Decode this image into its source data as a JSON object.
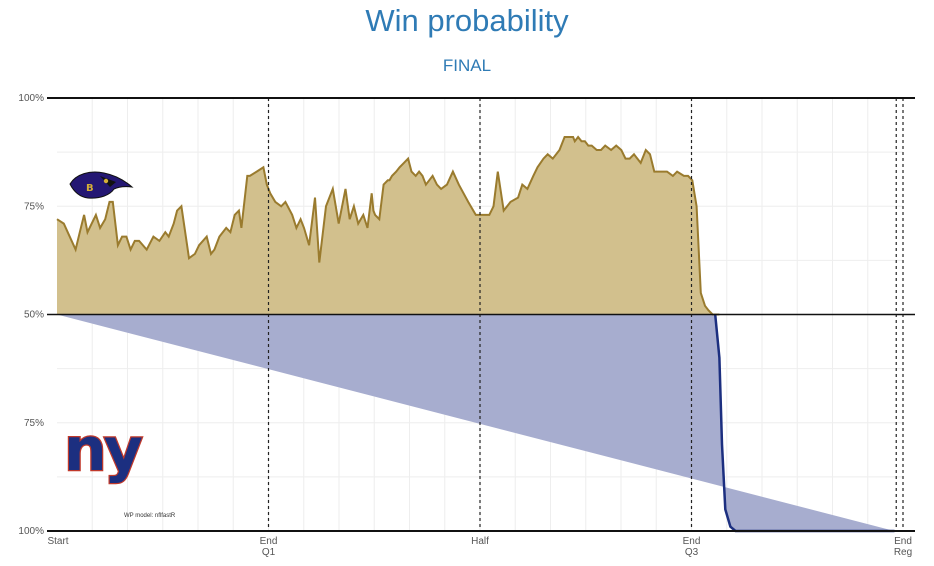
{
  "title": "Win probability",
  "subtitle": "FINAL",
  "chart_data": {
    "type": "area",
    "x_tick_labels": [
      {
        "line1": "Start",
        "line2": ""
      },
      {
        "line1": "End",
        "line2": "Q1"
      },
      {
        "line1": "Half",
        "line2": ""
      },
      {
        "line1": "End",
        "line2": "Q3"
      },
      {
        "line1": "End",
        "line2": "Reg"
      }
    ],
    "y_tick_labels": [
      "100%",
      "75%",
      "50%",
      "75%",
      "100%"
    ],
    "x_unit": "game fraction (0 = start, 1 = end of regulation)",
    "y_unit": "Ravens win probability (%)",
    "ylim": [
      0,
      100
    ],
    "quarter_lines": [
      0.25,
      0.5,
      0.75,
      1.0
    ],
    "extra_line": 0.992,
    "grid": true,
    "model_note": "WP model: nflfastR",
    "teams": {
      "top": {
        "name": "Ravens",
        "logo_icon": "ravens-logo-icon",
        "fill": "#d2c08d",
        "line": "#9a7b2e"
      },
      "bottom": {
        "name": "Giants",
        "logo_text": "ny",
        "logo_icon": "giants-logo-icon",
        "fill": "#a7adcf",
        "line": "#1c2f80",
        "logo_color": "#1c2f80",
        "logo_outline": "#c0392b"
      }
    },
    "series": [
      {
        "x": [
          0.0,
          0.008,
          0.015,
          0.022,
          0.027,
          0.032,
          0.036,
          0.041,
          0.046,
          0.051,
          0.057,
          0.062,
          0.066,
          0.072,
          0.077,
          0.082,
          0.087,
          0.092,
          0.097,
          0.106,
          0.114,
          0.121,
          0.128,
          0.132,
          0.138,
          0.142,
          0.147,
          0.156,
          0.163,
          0.168,
          0.177,
          0.182,
          0.186,
          0.192,
          0.2,
          0.205,
          0.21,
          0.215,
          0.218,
          0.225,
          0.228,
          0.236,
          0.244,
          0.248,
          0.252,
          0.258,
          0.265,
          0.27,
          0.278,
          0.283,
          0.288,
          0.292,
          0.298,
          0.305,
          0.31,
          0.318,
          0.326,
          0.333,
          0.341,
          0.346,
          0.351,
          0.356,
          0.362,
          0.367,
          0.372,
          0.374,
          0.376,
          0.381,
          0.386,
          0.391,
          0.393,
          0.396,
          0.401,
          0.405,
          0.41,
          0.415,
          0.419,
          0.424,
          0.428,
          0.432,
          0.436,
          0.44,
          0.444,
          0.449,
          0.454,
          0.461,
          0.468,
          0.475,
          0.486,
          0.495,
          0.503,
          0.511,
          0.516,
          0.521,
          0.528,
          0.536,
          0.545,
          0.55,
          0.556,
          0.563,
          0.568,
          0.575,
          0.58,
          0.586,
          0.594,
          0.6,
          0.605,
          0.61,
          0.612,
          0.616,
          0.62,
          0.624,
          0.628,
          0.632,
          0.638,
          0.643,
          0.648,
          0.655,
          0.661,
          0.667,
          0.672,
          0.677,
          0.682,
          0.69,
          0.696,
          0.701,
          0.706,
          0.711,
          0.716,
          0.721,
          0.728,
          0.733,
          0.741,
          0.746,
          0.751,
          0.756,
          0.761,
          0.766,
          0.77,
          0.775,
          0.778,
          0.783,
          0.786,
          0.79,
          0.796,
          0.802,
          0.809,
          0.816,
          0.823,
          0.83,
          0.836,
          0.842,
          0.848,
          0.85,
          0.853,
          0.856,
          0.862,
          0.865,
          0.87,
          0.879,
          0.887,
          0.893,
          0.898,
          0.902,
          0.907,
          0.913,
          0.918,
          0.925,
          0.931,
          0.937,
          0.942,
          0.947,
          0.952,
          0.956,
          0.96,
          0.964,
          0.968,
          0.972,
          0.978,
          0.984,
          0.99,
          0.994,
          0.997,
          1.0
        ],
        "wp": [
          72,
          71,
          68,
          65,
          69,
          73,
          69,
          71,
          73,
          70,
          72,
          76,
          76,
          66,
          68,
          68,
          65,
          67,
          67,
          65,
          68,
          67,
          69,
          68,
          71,
          74,
          75,
          63,
          64,
          66,
          68,
          64,
          65,
          68,
          70,
          69,
          73,
          74,
          70,
          82,
          82,
          83,
          84,
          80,
          78,
          76,
          75,
          76,
          73,
          70,
          72,
          70,
          66,
          77,
          62,
          75,
          79,
          71,
          79,
          72,
          75,
          71,
          73,
          70,
          78,
          74,
          73,
          72,
          80,
          81,
          81,
          82,
          83,
          84,
          85,
          86,
          83,
          82,
          83,
          82,
          80,
          81,
          82,
          80,
          79,
          80,
          83,
          80,
          76,
          73,
          73,
          73,
          75,
          83,
          74,
          76,
          77,
          80,
          79,
          82,
          84,
          86,
          87,
          86,
          88,
          91,
          91,
          91,
          90,
          91,
          90,
          90,
          89,
          89,
          88,
          88,
          89,
          88,
          89,
          88,
          86,
          86,
          87,
          85,
          88,
          87,
          83,
          83,
          83,
          83,
          82,
          83,
          82,
          82,
          81,
          75,
          55,
          52,
          51,
          50,
          50,
          40,
          20,
          5,
          1,
          0,
          0,
          0,
          0,
          0,
          0,
          0,
          0,
          0,
          0,
          0,
          0,
          0,
          0,
          0,
          0,
          0,
          0,
          0,
          0,
          0,
          0,
          0,
          0,
          0,
          0,
          0,
          0,
          0,
          0,
          0,
          0,
          0,
          0,
          0,
          0
        ]
      }
    ]
  }
}
